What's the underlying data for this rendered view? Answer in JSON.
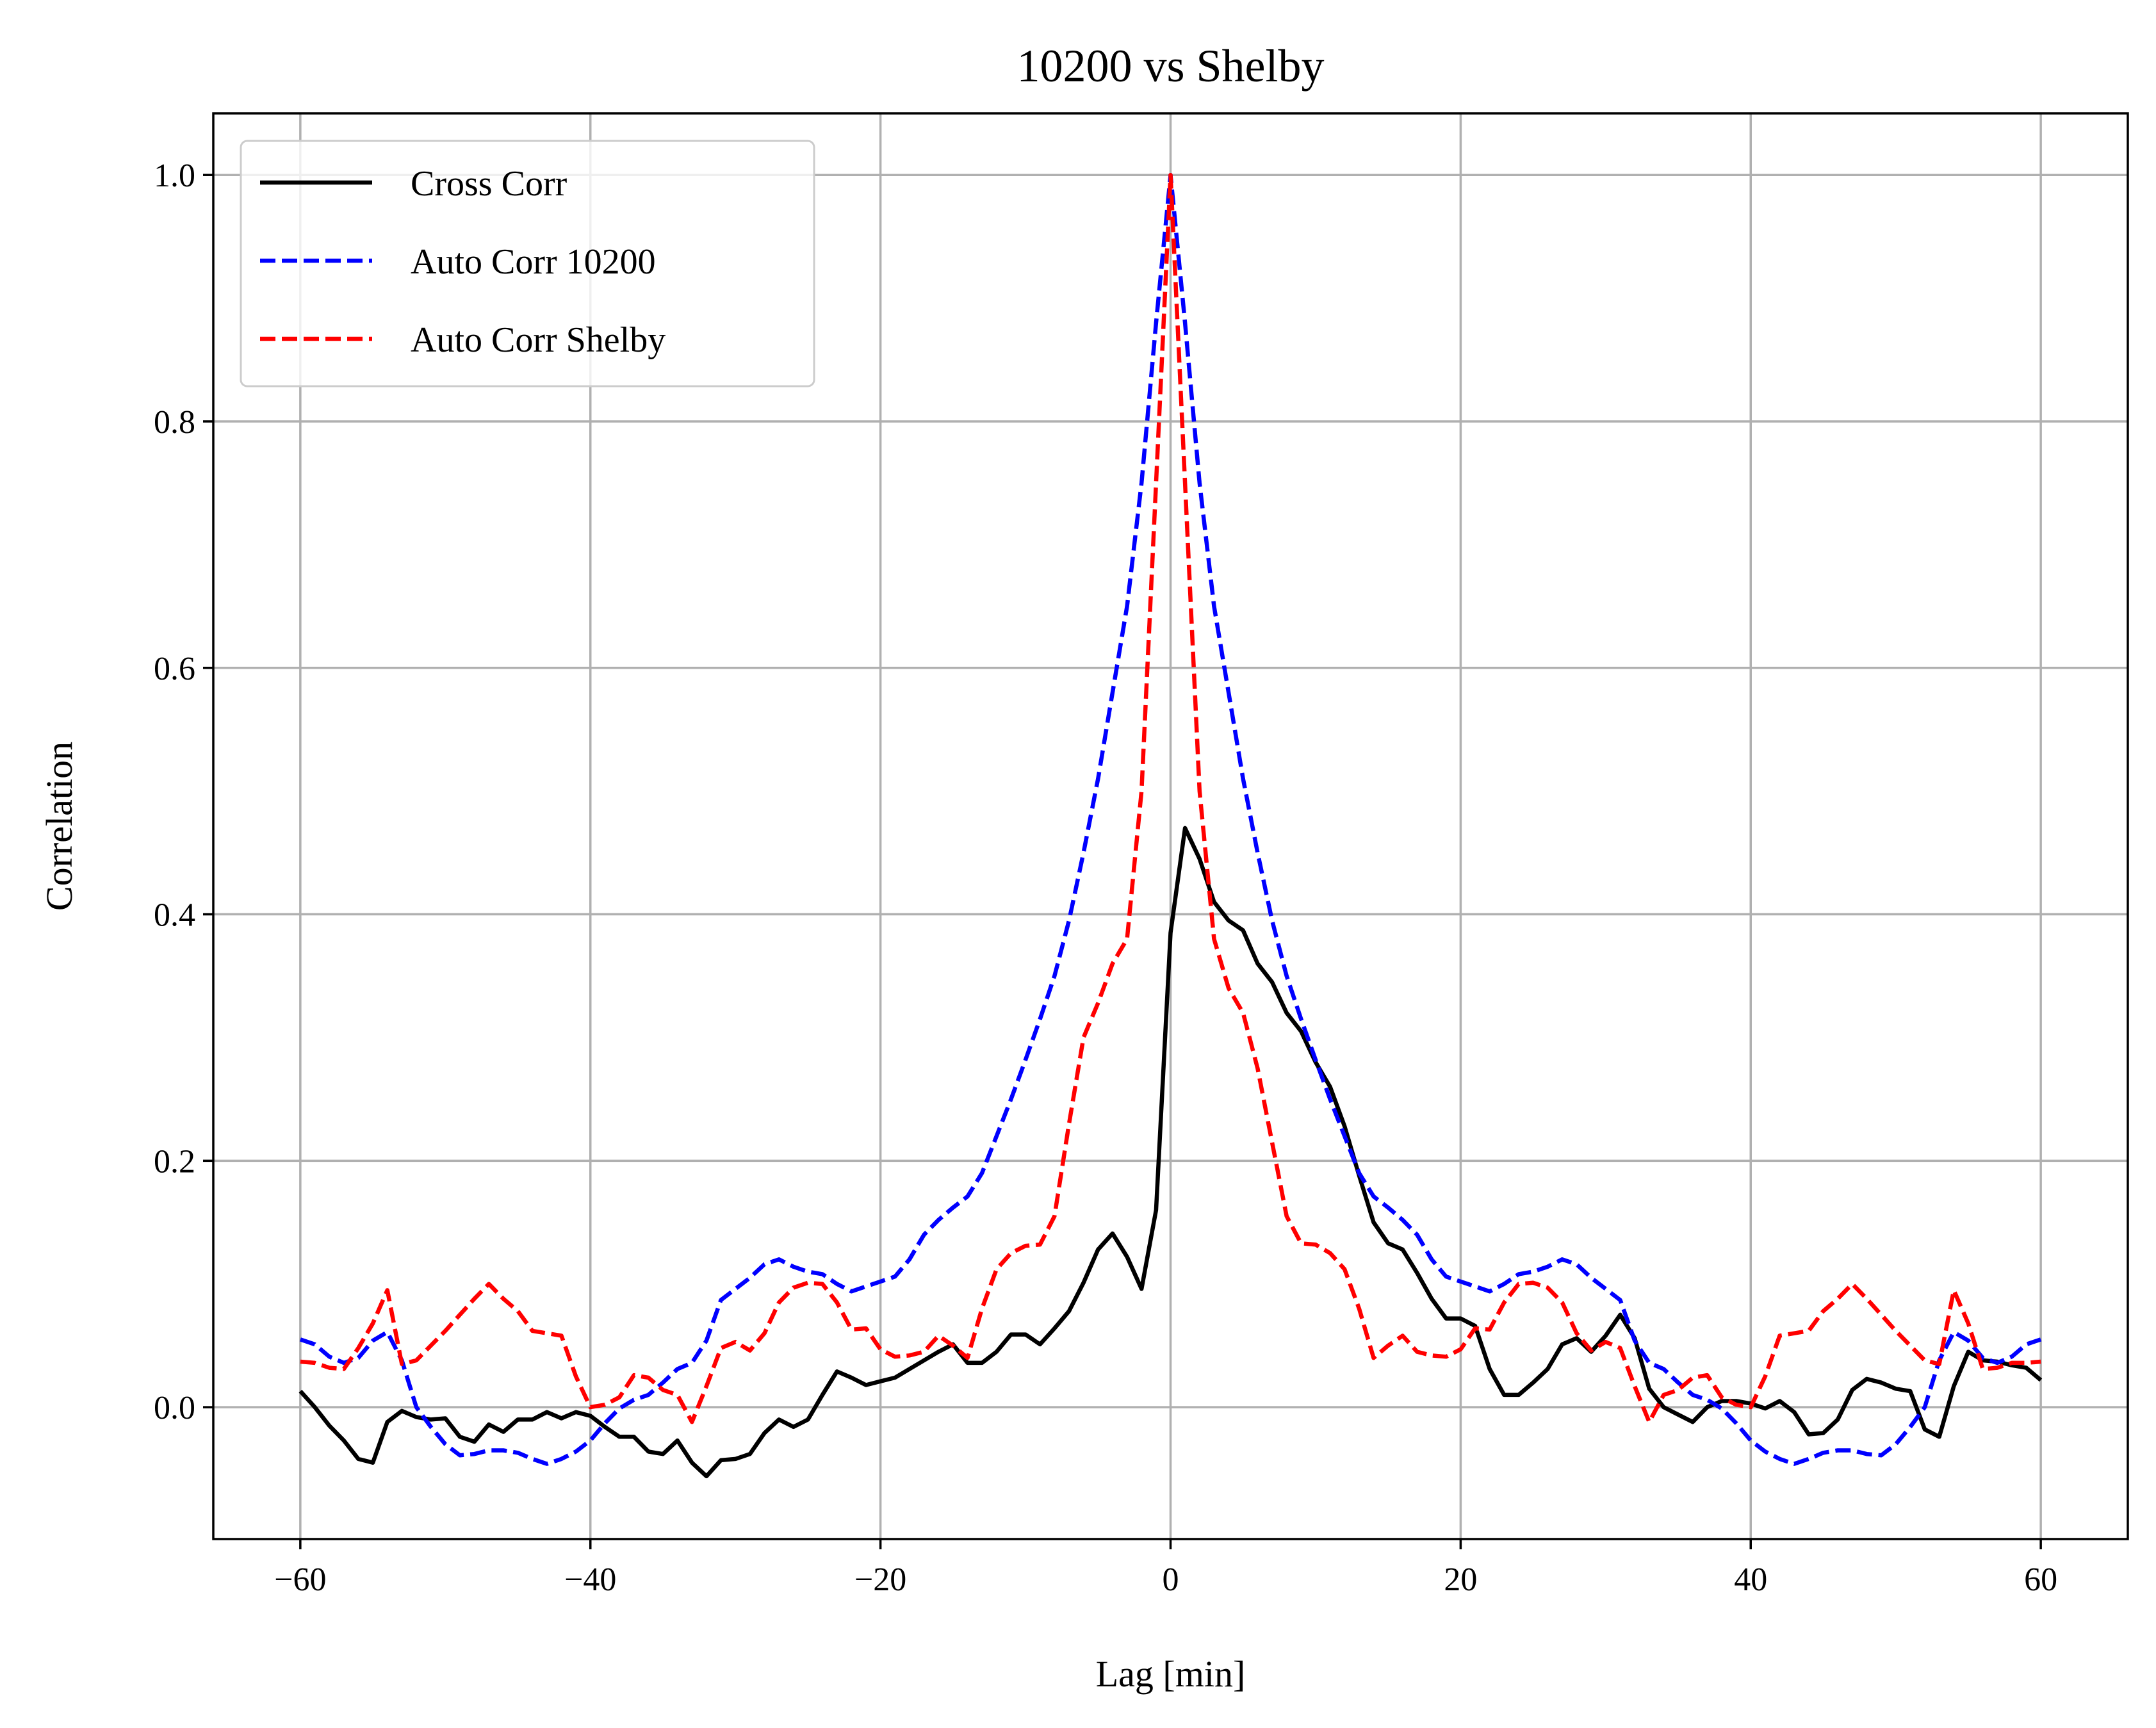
{
  "chart_data": {
    "type": "line",
    "title": "10200 vs Shelby",
    "xlabel": "Lag [min]",
    "ylabel": "Correlation",
    "xlim": [
      -66,
      66
    ],
    "ylim": [
      -0.107,
      1.05
    ],
    "xticks": [
      -60,
      -40,
      -20,
      0,
      20,
      40,
      60
    ],
    "xtick_labels": [
      "−60",
      "−40",
      "−20",
      "0",
      "20",
      "40",
      "60"
    ],
    "yticks": [
      0.0,
      0.2,
      0.4,
      0.6,
      0.8,
      1.0
    ],
    "ytick_labels": [
      "0.0",
      "0.2",
      "0.4",
      "0.6",
      "0.8",
      "1.0"
    ],
    "grid": true,
    "legend_position": "top-left",
    "x": [
      -60,
      -59,
      -58,
      -57,
      -56,
      -55,
      -54,
      -53,
      -52,
      -51,
      -50,
      -49,
      -48,
      -47,
      -46,
      -45,
      -44,
      -43,
      -42,
      -41,
      -40,
      -39,
      -38,
      -37,
      -36,
      -35,
      -34,
      -33,
      -32,
      -31,
      -30,
      -29,
      -28,
      -27,
      -26,
      -25,
      -24,
      -23,
      -22,
      -21,
      -20,
      -19,
      -18,
      -17,
      -16,
      -15,
      -14,
      -13,
      -12,
      -11,
      -10,
      -9,
      -8,
      -7,
      -6,
      -5,
      -4,
      -3,
      -2,
      -1,
      0,
      1,
      2,
      3,
      4,
      5,
      6,
      7,
      8,
      9,
      10,
      11,
      12,
      13,
      14,
      15,
      16,
      17,
      18,
      19,
      20,
      21,
      22,
      23,
      24,
      25,
      26,
      27,
      28,
      29,
      30,
      31,
      32,
      33,
      34,
      35,
      36,
      37,
      38,
      39,
      40,
      41,
      42,
      43,
      44,
      45,
      46,
      47,
      48,
      49,
      50,
      51,
      52,
      53,
      54,
      55,
      56,
      57,
      58,
      59,
      60
    ],
    "series": [
      {
        "name": "Cross Corr",
        "color": "#000000",
        "dash": "solid",
        "values": [
          0.013,
          0.0,
          -0.015,
          -0.027,
          -0.042,
          -0.045,
          -0.012,
          -0.003,
          -0.008,
          -0.01,
          -0.009,
          -0.024,
          -0.028,
          -0.014,
          -0.02,
          -0.01,
          -0.01,
          -0.004,
          -0.009,
          -0.004,
          -0.007,
          -0.016,
          -0.024,
          -0.024,
          -0.036,
          -0.038,
          -0.027,
          -0.045,
          -0.056,
          -0.043,
          -0.042,
          -0.038,
          -0.021,
          -0.01,
          -0.016,
          -0.01,
          0.01,
          0.029,
          0.024,
          0.018,
          0.021,
          0.024,
          0.031,
          0.038,
          0.045,
          0.051,
          0.036,
          0.036,
          0.045,
          0.059,
          0.059,
          0.051,
          0.064,
          0.078,
          0.101,
          0.128,
          0.141,
          0.122,
          0.096,
          0.16,
          0.385,
          0.47,
          0.445,
          0.41,
          0.395,
          0.387,
          0.36,
          0.345,
          0.32,
          0.305,
          0.28,
          0.26,
          0.228,
          0.188,
          0.15,
          0.133,
          0.128,
          0.109,
          0.088,
          0.072,
          0.072,
          0.066,
          0.031,
          0.01,
          0.01,
          0.02,
          0.031,
          0.051,
          0.056,
          0.045,
          0.058,
          0.075,
          0.056,
          0.015,
          0.0,
          -0.006,
          -0.012,
          0.0,
          0.005,
          0.005,
          0.003,
          -0.001,
          0.005,
          -0.004,
          -0.022,
          -0.021,
          -0.01,
          0.014,
          0.023,
          0.02,
          0.015,
          0.013,
          -0.018,
          -0.024,
          0.017,
          0.045,
          0.038,
          0.037,
          0.034,
          0.032,
          0.022
        ]
      },
      {
        "name": "Auto Corr 10200",
        "color": "#0000ff",
        "dash": "dashed",
        "values": [
          0.055,
          0.051,
          0.041,
          0.036,
          0.04,
          0.054,
          0.061,
          0.038,
          0.0,
          -0.016,
          -0.03,
          -0.039,
          -0.038,
          -0.035,
          -0.035,
          -0.037,
          -0.042,
          -0.046,
          -0.042,
          -0.036,
          -0.027,
          -0.013,
          -0.001,
          0.006,
          0.01,
          0.02,
          0.031,
          0.036,
          0.054,
          0.087,
          0.096,
          0.105,
          0.116,
          0.12,
          0.114,
          0.11,
          0.108,
          0.1,
          0.094,
          0.098,
          0.102,
          0.106,
          0.12,
          0.14,
          0.152,
          0.162,
          0.171,
          0.19,
          0.22,
          0.25,
          0.282,
          0.315,
          0.35,
          0.395,
          0.45,
          0.51,
          0.58,
          0.65,
          0.75,
          0.88,
          1.0,
          0.88,
          0.75,
          0.65,
          0.58,
          0.51,
          0.45,
          0.395,
          0.35,
          0.315,
          0.282,
          0.25,
          0.22,
          0.19,
          0.171,
          0.162,
          0.152,
          0.14,
          0.12,
          0.106,
          0.102,
          0.098,
          0.094,
          0.1,
          0.108,
          0.11,
          0.114,
          0.12,
          0.116,
          0.105,
          0.096,
          0.087,
          0.054,
          0.036,
          0.031,
          0.02,
          0.01,
          0.006,
          -0.001,
          -0.013,
          -0.027,
          -0.036,
          -0.042,
          -0.046,
          -0.042,
          -0.037,
          -0.035,
          -0.035,
          -0.038,
          -0.039,
          -0.03,
          -0.016,
          0.0,
          0.038,
          0.061,
          0.054,
          0.04,
          0.036,
          0.041,
          0.051,
          0.055
        ]
      },
      {
        "name": "Auto Corr Shelby",
        "color": "#ff0000",
        "dash": "dashed",
        "values": [
          0.037,
          0.036,
          0.032,
          0.031,
          0.048,
          0.068,
          0.095,
          0.035,
          0.038,
          0.05,
          0.062,
          0.075,
          0.088,
          0.1,
          0.088,
          0.078,
          0.062,
          0.06,
          0.058,
          0.025,
          0.0,
          0.002,
          0.008,
          0.026,
          0.024,
          0.014,
          0.01,
          -0.012,
          0.017,
          0.048,
          0.053,
          0.046,
          0.06,
          0.085,
          0.097,
          0.101,
          0.1,
          0.085,
          0.063,
          0.064,
          0.047,
          0.041,
          0.042,
          0.045,
          0.058,
          0.05,
          0.04,
          0.08,
          0.112,
          0.125,
          0.131,
          0.132,
          0.155,
          0.23,
          0.3,
          0.328,
          0.36,
          0.38,
          0.5,
          0.75,
          1.0,
          0.75,
          0.5,
          0.38,
          0.34,
          0.32,
          0.275,
          0.215,
          0.155,
          0.133,
          0.132,
          0.125,
          0.112,
          0.08,
          0.04,
          0.05,
          0.058,
          0.045,
          0.042,
          0.041,
          0.047,
          0.064,
          0.063,
          0.085,
          0.1,
          0.101,
          0.097,
          0.085,
          0.06,
          0.046,
          0.053,
          0.048,
          0.017,
          -0.012,
          0.01,
          0.014,
          0.024,
          0.026,
          0.008,
          0.002,
          0.0,
          0.025,
          0.058,
          0.06,
          0.062,
          0.078,
          0.088,
          0.1,
          0.088,
          0.075,
          0.062,
          0.05,
          0.038,
          0.035,
          0.095,
          0.068,
          0.031,
          0.032,
          0.036,
          0.036,
          0.037
        ]
      }
    ]
  }
}
